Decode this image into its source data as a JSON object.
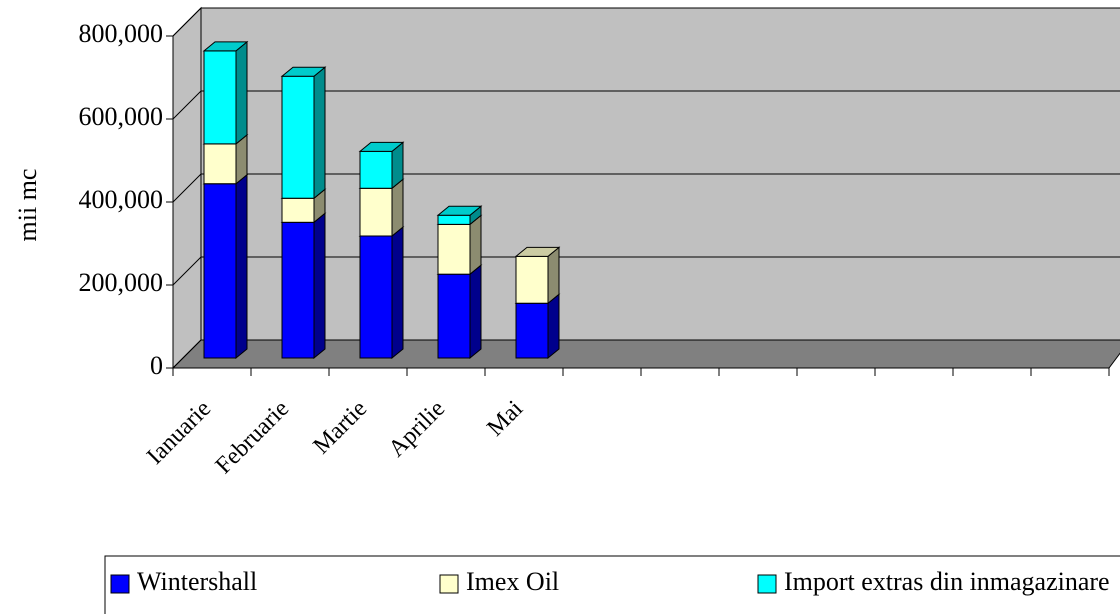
{
  "chart_data": {
    "type": "bar3d_stacked",
    "y_label": "mii mc",
    "categories": [
      "Ianuarie",
      "Februarie",
      "Martie",
      "Aprilie",
      "Mai",
      null,
      null,
      null,
      null,
      null,
      null,
      null
    ],
    "series": [
      {
        "name": "Wintershall",
        "color": "#0000ff",
        "values": [
          420000,
          327000,
          294000,
          202000,
          132000,
          null,
          null,
          null,
          null,
          null,
          null,
          null
        ]
      },
      {
        "name": "Imex Oil",
        "color": "#ffffcc",
        "values": [
          96000,
          58000,
          115000,
          120000,
          113000,
          null,
          null,
          null,
          null,
          null,
          null,
          null
        ]
      },
      {
        "name": "Import extras din inmagazinare",
        "color": "#00ffff",
        "values": [
          224000,
          294000,
          89000,
          22000,
          0,
          null,
          null,
          null,
          null,
          null,
          null,
          null
        ]
      }
    ],
    "ylim": [
      0,
      800000
    ],
    "yticks": [
      0,
      {
        "value": 200000,
        "label": "200,000"
      },
      {
        "value": 400000,
        "label": "400,000"
      },
      {
        "value": 600000,
        "label": "600,000"
      },
      {
        "value": 800000,
        "label": "800,000"
      }
    ],
    "grid": true,
    "legend": "bottom"
  }
}
